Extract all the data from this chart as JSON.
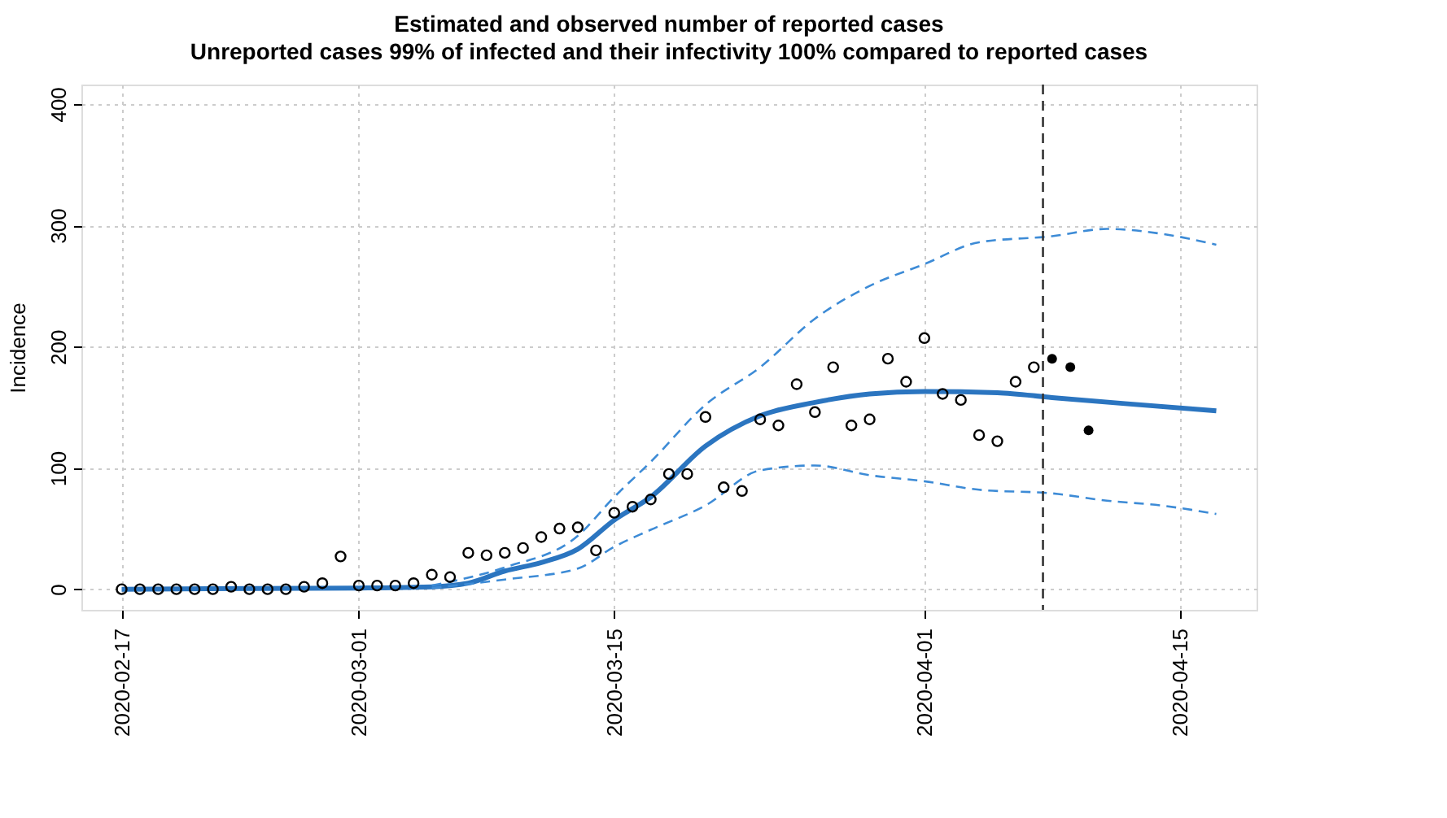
{
  "chart_data": {
    "type": "scatter",
    "title": "Estimated and observed number of reported cases",
    "subtitle": "Unreported cases 99% of infected and their infectivity 100% compared to reported cases",
    "ylabel": "Incidence",
    "xlim": [
      "2020-02-14T19:00",
      "2020-04-19T05:00"
    ],
    "xticks": [
      "2020-02-17",
      "2020-03-01",
      "2020-03-15",
      "2020-04-01",
      "2020-04-15"
    ],
    "ylim": [
      -17,
      416
    ],
    "yticks": [
      0,
      100,
      200,
      300,
      400
    ],
    "grid": true,
    "series": [
      {
        "color": "#000000",
        "marker": "circle",
        "x": [
          "2020-02-17",
          "2020-02-18",
          "2020-02-19",
          "2020-02-20",
          "2020-02-21",
          "2020-02-22",
          "2020-02-23",
          "2020-02-24",
          "2020-02-25",
          "2020-02-26",
          "2020-02-27",
          "2020-02-28",
          "2020-02-29",
          "2020-03-01",
          "2020-03-02",
          "2020-03-03",
          "2020-03-04",
          "2020-03-05",
          "2020-03-06",
          "2020-03-07",
          "2020-03-08",
          "2020-03-09",
          "2020-03-10",
          "2020-03-11",
          "2020-03-12",
          "2020-03-13",
          "2020-03-14",
          "2020-03-15",
          "2020-03-16",
          "2020-03-17",
          "2020-03-18",
          "2020-03-19",
          "2020-03-20",
          "2020-03-21",
          "2020-03-22",
          "2020-03-23",
          "2020-03-24",
          "2020-03-25",
          "2020-03-26",
          "2020-03-27",
          "2020-03-28",
          "2020-03-29",
          "2020-03-30",
          "2020-03-31",
          "2020-04-01",
          "2020-04-02",
          "2020-04-03",
          "2020-04-04",
          "2020-04-05",
          "2020-04-06",
          "2020-04-07"
        ],
        "values": [
          0,
          0,
          0,
          0,
          0,
          0,
          2,
          0,
          0,
          0,
          2,
          5,
          27,
          3,
          3,
          3,
          5,
          12,
          10,
          30,
          28,
          30,
          34,
          43,
          50,
          51,
          32,
          63,
          68,
          74,
          95,
          95,
          142,
          84,
          81,
          140,
          135,
          169,
          146,
          183,
          135,
          140,
          190,
          171,
          207,
          161,
          156,
          127,
          122,
          171,
          183
        ]
      },
      {
        "color": "#000000",
        "marker": "circle",
        "x": [
          "2020-04-08",
          "2020-04-09",
          "2020-04-10"
        ],
        "values": [
          190,
          183,
          131
        ]
      },
      {
        "type": "line",
        "color": "#2b75c0",
        "line_style": "solid",
        "x": [
          "2020-02-17",
          "2020-03-01",
          "2020-03-05",
          "2020-03-07",
          "2020-03-09",
          "2020-03-11",
          "2020-03-13",
          "2020-03-15",
          "2020-03-17",
          "2020-03-20",
          "2020-03-23",
          "2020-03-26",
          "2020-03-29",
          "2020-04-01",
          "2020-04-05",
          "2020-04-08",
          "2020-04-12",
          "2020-04-17"
        ],
        "values": [
          0,
          1,
          2,
          5,
          15,
          22,
          33,
          57,
          76,
          118,
          143,
          154,
          161,
          163,
          162,
          158,
          153,
          147
        ]
      },
      {
        "type": "line",
        "color": "#3d8bd6",
        "line_style": "dashed",
        "x": [
          "2020-03-05",
          "2020-03-09",
          "2020-03-13",
          "2020-03-15",
          "2020-03-17",
          "2020-03-20",
          "2020-03-23",
          "2020-03-26",
          "2020-03-29",
          "2020-04-01",
          "2020-04-04",
          "2020-04-08",
          "2020-04-11",
          "2020-04-14",
          "2020-04-17"
        ],
        "values": [
          3,
          18,
          44,
          76,
          105,
          152,
          183,
          223,
          250,
          268,
          286,
          291,
          297,
          293,
          284
        ]
      },
      {
        "type": "line",
        "color": "#3d8bd6",
        "line_style": "dashed",
        "x": [
          "2020-03-05",
          "2020-03-09",
          "2020-03-13",
          "2020-03-15",
          "2020-03-17",
          "2020-03-20",
          "2020-03-23",
          "2020-03-26",
          "2020-03-29",
          "2020-04-01",
          "2020-04-04",
          "2020-04-08",
          "2020-04-11",
          "2020-04-14",
          "2020-04-17"
        ],
        "values": [
          1,
          8,
          17,
          35,
          49,
          69,
          98,
          102,
          94,
          89,
          82,
          79,
          73,
          69,
          62
        ]
      }
    ],
    "ref_lines": [
      {
        "axis": "x",
        "value": "2020-04-07T12:00",
        "color": "#333333",
        "line_style": "dashed"
      }
    ]
  }
}
